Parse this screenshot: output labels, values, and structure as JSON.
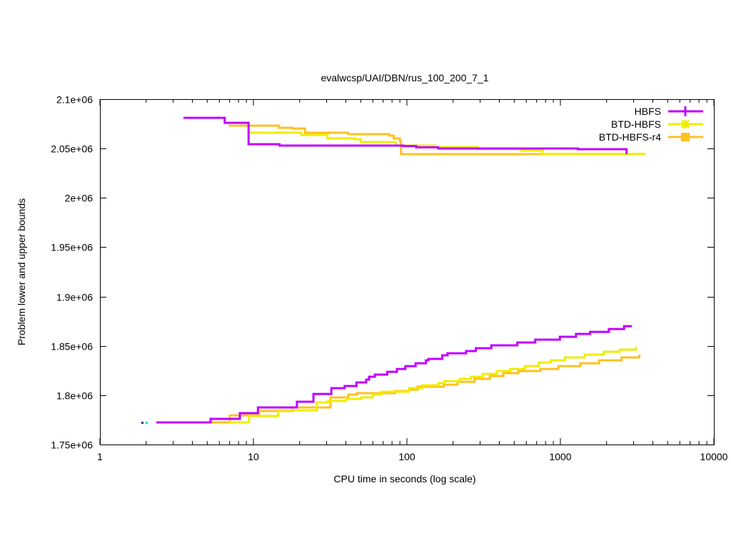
{
  "chart_data": {
    "type": "line",
    "title": "evalwcsp/UAI/DBN/rus_100_200_7_1",
    "xlabel": "CPU time in seconds (log scale)",
    "ylabel": "Problem lower and upper bounds",
    "xscale": "log",
    "xlim": [
      1,
      10000
    ],
    "ylim": [
      1750000,
      2100000
    ],
    "xticks": [
      {
        "v": 1,
        "label": "1"
      },
      {
        "v": 10,
        "label": "10"
      },
      {
        "v": 100,
        "label": "100"
      },
      {
        "v": 1000,
        "label": "1000"
      },
      {
        "v": 10000,
        "label": "10000"
      }
    ],
    "yticks": [
      {
        "v": 1750000,
        "label": "1.75e+06"
      },
      {
        "v": 1800000,
        "label": "1.8e+06"
      },
      {
        "v": 1850000,
        "label": "1.85e+06"
      },
      {
        "v": 1900000,
        "label": "1.9e+06"
      },
      {
        "v": 1950000,
        "label": "1.95e+06"
      },
      {
        "v": 2000000,
        "label": "2e+06"
      },
      {
        "v": 2050000,
        "label": "2.05e+06"
      },
      {
        "v": 2100000,
        "label": "2.1e+06"
      }
    ],
    "legend_position": "top-right",
    "series": [
      {
        "name": "HBFS",
        "color": "#c000ff",
        "marker": "plus",
        "upper": [
          [
            3.5,
            2081100
          ],
          [
            6.5,
            2076100
          ],
          [
            9.3,
            2054400
          ],
          [
            14.8,
            2053000
          ],
          [
            50,
            2053000
          ],
          [
            95,
            2052500
          ],
          [
            115,
            2051200
          ],
          [
            160,
            2050000
          ],
          [
            1300,
            2049300
          ],
          [
            2700,
            2044300
          ],
          [
            2700,
            2044300
          ]
        ],
        "lower": [
          [
            2.33,
            1772400
          ],
          [
            5.26,
            1776000
          ],
          [
            8.16,
            1781800
          ],
          [
            10.7,
            1787600
          ],
          [
            19.2,
            1793400
          ],
          [
            24.6,
            1801300
          ],
          [
            32.2,
            1807100
          ],
          [
            39.3,
            1809300
          ],
          [
            46.9,
            1812900
          ],
          [
            54.3,
            1815800
          ],
          [
            56.7,
            1818700
          ],
          [
            61.8,
            1820900
          ],
          [
            74.4,
            1823700
          ],
          [
            86.1,
            1826600
          ],
          [
            97.7,
            1829500
          ],
          [
            114,
            1832400
          ],
          [
            133,
            1835300
          ],
          [
            138,
            1836800
          ],
          [
            170,
            1840400
          ],
          [
            184,
            1842500
          ],
          [
            243,
            1844700
          ],
          [
            281,
            1847600
          ],
          [
            355,
            1850500
          ],
          [
            524,
            1853400
          ],
          [
            686,
            1856300
          ],
          [
            993,
            1859200
          ],
          [
            1264,
            1862100
          ],
          [
            1563,
            1864200
          ],
          [
            2070,
            1867100
          ],
          [
            2600,
            1870000
          ],
          [
            2930,
            1870000
          ]
        ]
      },
      {
        "name": "BTD-HBFS",
        "color": "#eeee00",
        "marker": "star",
        "upper": [
          [
            9.3,
            2066000
          ],
          [
            20.5,
            2063800
          ],
          [
            30.4,
            2060200
          ],
          [
            45.6,
            2059400
          ],
          [
            49.9,
            2056600
          ],
          [
            85,
            2053000
          ],
          [
            153,
            2051500
          ],
          [
            290,
            2049700
          ],
          [
            555,
            2047900
          ],
          [
            764,
            2044500
          ],
          [
            3600,
            2044500
          ]
        ],
        "lower": [
          [
            6.9,
            1772400
          ],
          [
            9.38,
            1778900
          ],
          [
            14.5,
            1784700
          ],
          [
            25.9,
            1792700
          ],
          [
            30.5,
            1794100
          ],
          [
            40.3,
            1796300
          ],
          [
            50.5,
            1797700
          ],
          [
            59.8,
            1800600
          ],
          [
            68.1,
            1803500
          ],
          [
            103,
            1807100
          ],
          [
            126,
            1810000
          ],
          [
            160,
            1812200
          ],
          [
            176,
            1814300
          ],
          [
            221,
            1816500
          ],
          [
            262,
            1818700
          ],
          [
            311,
            1821600
          ],
          [
            385,
            1824500
          ],
          [
            472,
            1826600
          ],
          [
            587,
            1829500
          ],
          [
            723,
            1833100
          ],
          [
            866,
            1835300
          ],
          [
            1072,
            1838200
          ],
          [
            1443,
            1841100
          ],
          [
            1918,
            1844000
          ],
          [
            2434,
            1846200
          ],
          [
            3110,
            1849100
          ]
        ]
      },
      {
        "name": "BTD-HBFS-r4",
        "color": "#ffc020",
        "marker": "square",
        "upper": [
          [
            6.9,
            2073200
          ],
          [
            14.7,
            2071000
          ],
          [
            18,
            2070300
          ],
          [
            21.7,
            2066000
          ],
          [
            41.5,
            2064600
          ],
          [
            77,
            2063100
          ],
          [
            82,
            2060200
          ],
          [
            90,
            2057300
          ],
          [
            91.5,
            2044300
          ],
          [
            2900,
            2044300
          ]
        ],
        "lower": [
          [
            2.33,
            1772400
          ],
          [
            7.02,
            1779600
          ],
          [
            10.9,
            1784000
          ],
          [
            18.0,
            1787600
          ],
          [
            31.8,
            1797700
          ],
          [
            41.5,
            1800600
          ],
          [
            47.3,
            1802100
          ],
          [
            83.6,
            1804200
          ],
          [
            103,
            1805600
          ],
          [
            117,
            1808600
          ],
          [
            174,
            1810700
          ],
          [
            214,
            1813600
          ],
          [
            276,
            1816500
          ],
          [
            347,
            1819400
          ],
          [
            425,
            1822300
          ],
          [
            532,
            1824500
          ],
          [
            739,
            1826600
          ],
          [
            969,
            1829500
          ],
          [
            1349,
            1832400
          ],
          [
            1789,
            1835300
          ],
          [
            2501,
            1838200
          ],
          [
            3270,
            1841100
          ]
        ]
      }
    ]
  }
}
